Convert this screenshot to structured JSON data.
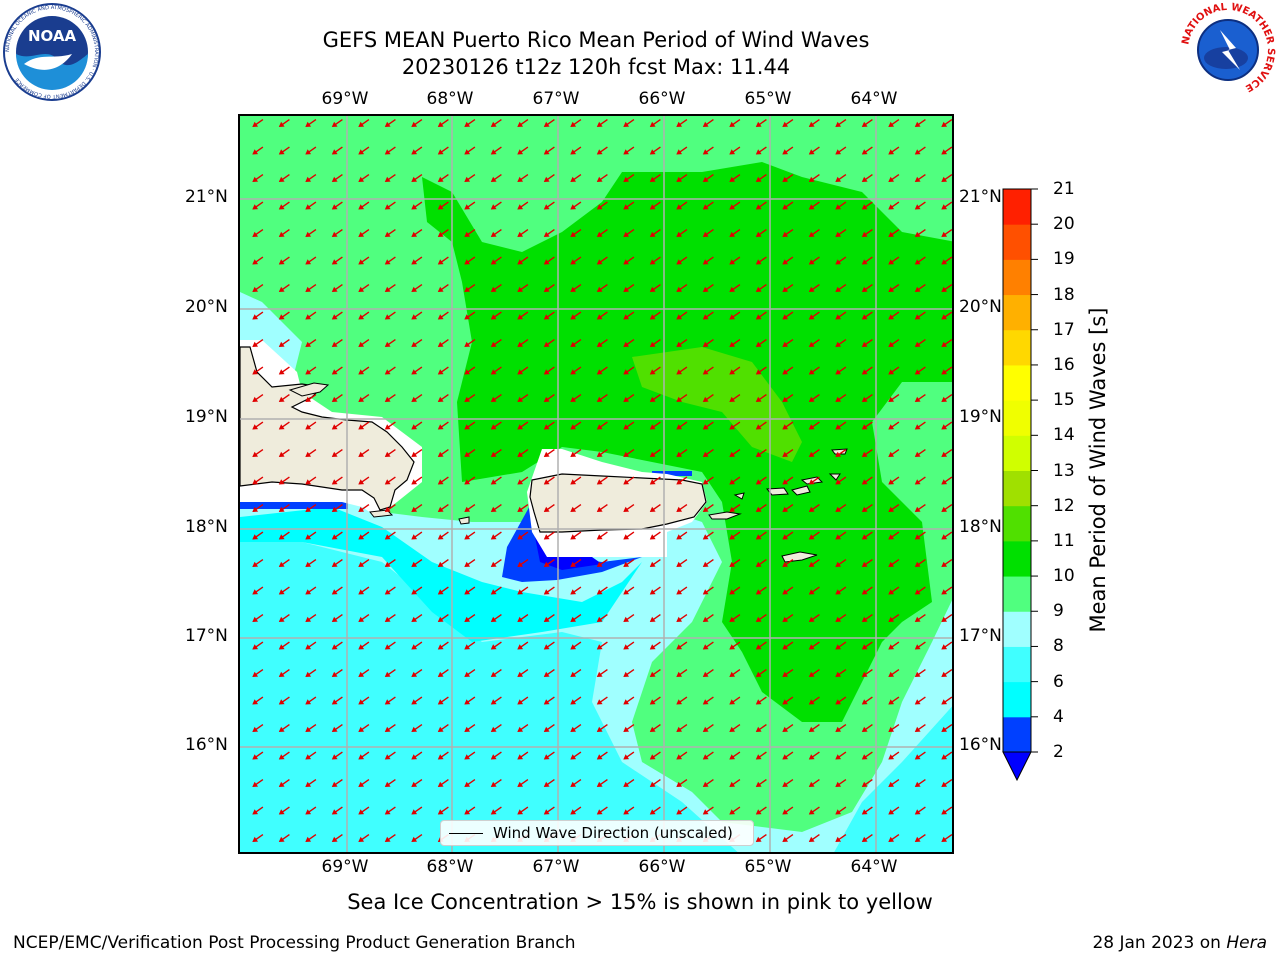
{
  "header": {
    "title_line1": "GEFS MEAN Puerto Rico Mean Period of Wind Waves",
    "title_line2": "20230126 t12z 120h fcst   Max: 11.44"
  },
  "map": {
    "lon_labels": [
      "69°W",
      "68°W",
      "67°W",
      "66°W",
      "65°W",
      "64°W"
    ],
    "lat_labels": [
      "21°N",
      "20°N",
      "19°N",
      "18°N",
      "17°N",
      "16°N"
    ],
    "legend_label": "Wind Wave Direction (unscaled)",
    "arrow_color": "#e00000",
    "land_color": "#efecdc"
  },
  "colorbar": {
    "label": "Mean Period of Wind Waves [s]",
    "ticks": [
      "2",
      "4",
      "6",
      "8",
      "9",
      "10",
      "11",
      "12",
      "13",
      "14",
      "15",
      "16",
      "17",
      "18",
      "19",
      "20",
      "21"
    ],
    "colors": [
      "#0040ff",
      "#00ffff",
      "#40ffff",
      "#a0ffff",
      "#50ff7f",
      "#00e000",
      "#50e000",
      "#a0e000",
      "#d0ff00",
      "#f0ff00",
      "#ffff00",
      "#ffd800",
      "#ffb000",
      "#ff8000",
      "#ff5000",
      "#ff2000"
    ],
    "under_color": "#0000ff"
  },
  "note": "Sea Ice Concentration > 15% is shown in pink to yellow",
  "footer": {
    "left": "NCEP/EMC/Verification Post Processing Product Generation Branch",
    "date": "28 Jan 2023 on",
    "machine": "Hera"
  },
  "logos": {
    "noaa_text": "NOAA",
    "noaa_ring_text": "NATIONAL OCEANIC AND ATMOSPHERIC ADMINISTRATION · U.S. DEPARTMENT OF COMMERCE",
    "nws_ring_text": "NATIONAL WEATHER SERVICE"
  }
}
